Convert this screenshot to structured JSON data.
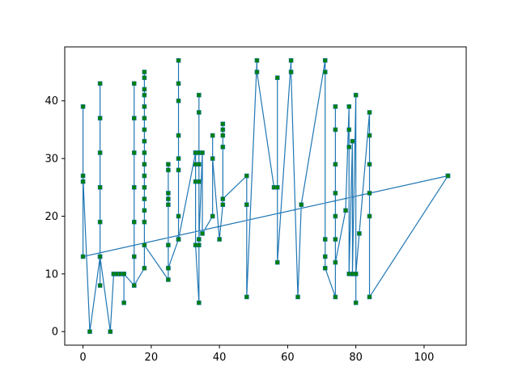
{
  "chart_data": {
    "type": "line",
    "title": "",
    "xlabel": "",
    "ylabel": "",
    "xlim": [
      -5.35,
      112.35
    ],
    "ylim": [
      -2.35,
      49.35
    ],
    "xticks": [
      0,
      20,
      40,
      60,
      80,
      100
    ],
    "yticks": [
      0,
      10,
      20,
      30,
      40
    ],
    "grid": false,
    "colors": {
      "line": "#1f77b4",
      "marker_face": "#008000",
      "marker_edge": "#1f77b4",
      "axes": "#000000"
    },
    "series": [
      {
        "marker": "square",
        "x": [
          107,
          0,
          0,
          0,
          0,
          2,
          5,
          5,
          5,
          5,
          5,
          5,
          5,
          5,
          8,
          9,
          9,
          10,
          10,
          10,
          11,
          11,
          11,
          12,
          12,
          12,
          15,
          15,
          15,
          15,
          15,
          15,
          15,
          15,
          18,
          18,
          18,
          18,
          18,
          18,
          18,
          18,
          18,
          18,
          18,
          18,
          18,
          18,
          18,
          18,
          18,
          25,
          25,
          25,
          25,
          25,
          25,
          25,
          25,
          25,
          28,
          28,
          28,
          28,
          28,
          28,
          28,
          28,
          28,
          33,
          33,
          33,
          33,
          33,
          34,
          34,
          34,
          34,
          34,
          34,
          34,
          34,
          34,
          34,
          35,
          35,
          38,
          38,
          38,
          40,
          41,
          41,
          41,
          41,
          41,
          41,
          48,
          48,
          48,
          51,
          51,
          56,
          57,
          57,
          57,
          61,
          61,
          63,
          64,
          71,
          71,
          71,
          71,
          71,
          74,
          74,
          74,
          74,
          74,
          74,
          74,
          74,
          77,
          78,
          78,
          78,
          78,
          79,
          79,
          79,
          80,
          80,
          80,
          80,
          81,
          84,
          84,
          84,
          84,
          84,
          84,
          107
        ],
        "y": [
          27,
          13,
          39,
          26,
          27,
          0,
          13,
          8,
          43,
          37,
          31,
          25,
          19,
          13,
          0,
          10,
          10,
          10,
          10,
          10,
          10,
          10,
          10,
          10,
          5,
          10,
          8,
          43,
          37,
          31,
          25,
          19,
          13,
          8,
          11,
          45,
          44,
          42,
          41,
          39,
          37,
          35,
          33,
          31,
          29,
          27,
          25,
          23,
          21,
          19,
          15,
          9,
          29,
          28,
          24,
          23,
          22,
          15,
          11,
          11,
          16,
          47,
          43,
          40,
          34,
          30,
          28,
          20,
          16,
          31,
          26,
          31,
          29,
          15,
          5,
          41,
          38,
          31,
          29,
          26,
          26,
          31,
          15,
          16,
          31,
          17,
          20,
          34,
          30,
          16,
          22,
          36,
          35,
          34,
          32,
          23,
          27,
          22,
          6,
          47,
          45,
          25,
          25,
          44,
          12,
          47,
          45,
          6,
          22,
          47,
          45,
          16,
          13,
          11,
          6,
          39,
          35,
          29,
          24,
          20,
          16,
          12,
          21,
          39,
          35,
          32,
          10,
          33,
          10,
          10,
          41,
          5,
          10,
          10,
          17,
          38,
          34,
          29,
          24,
          20,
          6,
          27
        ]
      }
    ]
  }
}
